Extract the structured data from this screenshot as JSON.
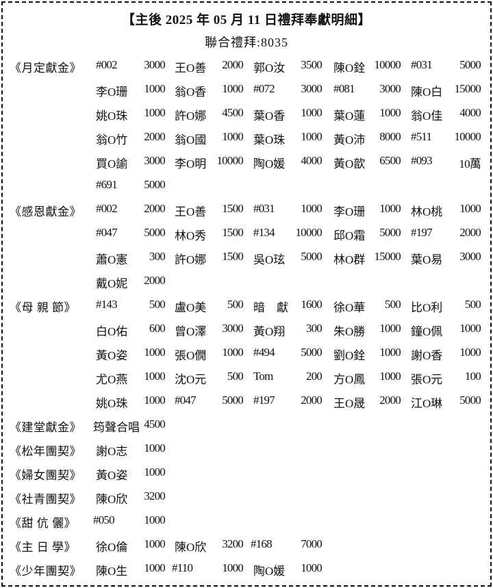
{
  "title": "【主後 2025 年 05 月 11 日禮拜奉獻明細】",
  "subtitle": "聯合禮拜:8035",
  "sections": [
    {
      "label": "《月定獻金》",
      "entries": [
        [
          "#002",
          "3000"
        ],
        [
          "王O善",
          "2000"
        ],
        [
          "郭O汝",
          "3500"
        ],
        [
          "陳O銓",
          "10000"
        ],
        [
          "#031",
          "5000"
        ],
        [
          "李O珊",
          "1000"
        ],
        [
          "翁O香",
          "1000"
        ],
        [
          "#072",
          "3000"
        ],
        [
          "#081",
          "3000"
        ],
        [
          "陳O白",
          "15000"
        ],
        [
          "姚O珠",
          "1000"
        ],
        [
          "許O娜",
          "4500"
        ],
        [
          "葉O香",
          "1000"
        ],
        [
          "葉O蓮",
          "1000"
        ],
        [
          "翁O佳",
          "4000"
        ],
        [
          "翁O竹",
          "2000"
        ],
        [
          "翁O國",
          "1000"
        ],
        [
          "葉O珠",
          "1000"
        ],
        [
          "黃O沛",
          "8000"
        ],
        [
          "#511",
          "10000"
        ],
        [
          "買O諭",
          "3000"
        ],
        [
          "李O明",
          "10000"
        ],
        [
          "陶O媛",
          "4000"
        ],
        [
          "黃O歆",
          "6500"
        ],
        [
          "#093",
          "10萬"
        ],
        [
          "#691",
          "5000"
        ]
      ]
    },
    {
      "label": "《感恩獻金》",
      "entries": [
        [
          "#002",
          "2000"
        ],
        [
          "王O善",
          "1500"
        ],
        [
          "#031",
          "1000"
        ],
        [
          "李O珊",
          "1000"
        ],
        [
          "林O桃",
          "1000"
        ],
        [
          "#047",
          "5000"
        ],
        [
          "林O秀",
          "1500"
        ],
        [
          "#134",
          "10000"
        ],
        [
          "邱O霜",
          "5000"
        ],
        [
          "#197",
          "2000"
        ],
        [
          "蕭O憲",
          "300"
        ],
        [
          "許O娜",
          "1500"
        ],
        [
          "吳O玹",
          "5000"
        ],
        [
          "林O群",
          "15000"
        ],
        [
          "葉O易",
          "3000"
        ],
        [
          "戴O妮",
          "2000"
        ]
      ]
    },
    {
      "label": "《母 親 節》",
      "entries": [
        [
          "#143",
          "500"
        ],
        [
          "盧O美",
          "500"
        ],
        [
          "暗　獻",
          "1600"
        ],
        [
          "徐O華",
          "500"
        ],
        [
          "比O利",
          "500"
        ],
        [
          "白O佑",
          "600"
        ],
        [
          "曾O澤",
          "3000"
        ],
        [
          "黃O翔",
          "300"
        ],
        [
          "朱O勝",
          "1000"
        ],
        [
          "鐘O佩",
          "1000"
        ],
        [
          "黃O姿",
          "1000"
        ],
        [
          "張O僩",
          "1000"
        ],
        [
          "#494",
          "5000"
        ],
        [
          "劉O銓",
          "1000"
        ],
        [
          "謝O香",
          "1000"
        ],
        [
          "尤O燕",
          "1000"
        ],
        [
          "沈O元",
          "500"
        ],
        [
          "Tom",
          "200"
        ],
        [
          "方O鳳",
          "1000"
        ],
        [
          "張O元",
          "100"
        ],
        [
          "姚O珠",
          "1000"
        ],
        [
          "#047",
          "5000"
        ],
        [
          "#197",
          "2000"
        ],
        [
          "王O晟",
          "2000"
        ],
        [
          "江O琳",
          "5000"
        ]
      ]
    },
    {
      "label": "《建堂獻金》",
      "entries": [
        [
          "筠聲合唱",
          "4500"
        ]
      ]
    },
    {
      "label": "《松年團契》",
      "entries": [
        [
          "謝O志",
          "1000"
        ]
      ]
    },
    {
      "label": "《婦女團契》",
      "entries": [
        [
          "黃O姿",
          "1000"
        ]
      ]
    },
    {
      "label": "《社青團契》",
      "entries": [
        [
          "陳O欣",
          "3200"
        ]
      ]
    },
    {
      "label": "《甜 伉 儷》",
      "entries": [
        [
          "#050",
          "1000"
        ]
      ]
    },
    {
      "label": "《主 日 學》",
      "entries": [
        [
          "徐O倫",
          "1000"
        ],
        [
          "陳O欣",
          "3200"
        ],
        [
          "#168",
          "7000"
        ]
      ]
    },
    {
      "label": "《少年團契》",
      "entries": [
        [
          "陳O生",
          "1000"
        ],
        [
          "#110",
          "1000"
        ],
        [
          "陶O媛",
          "1000"
        ]
      ]
    }
  ]
}
